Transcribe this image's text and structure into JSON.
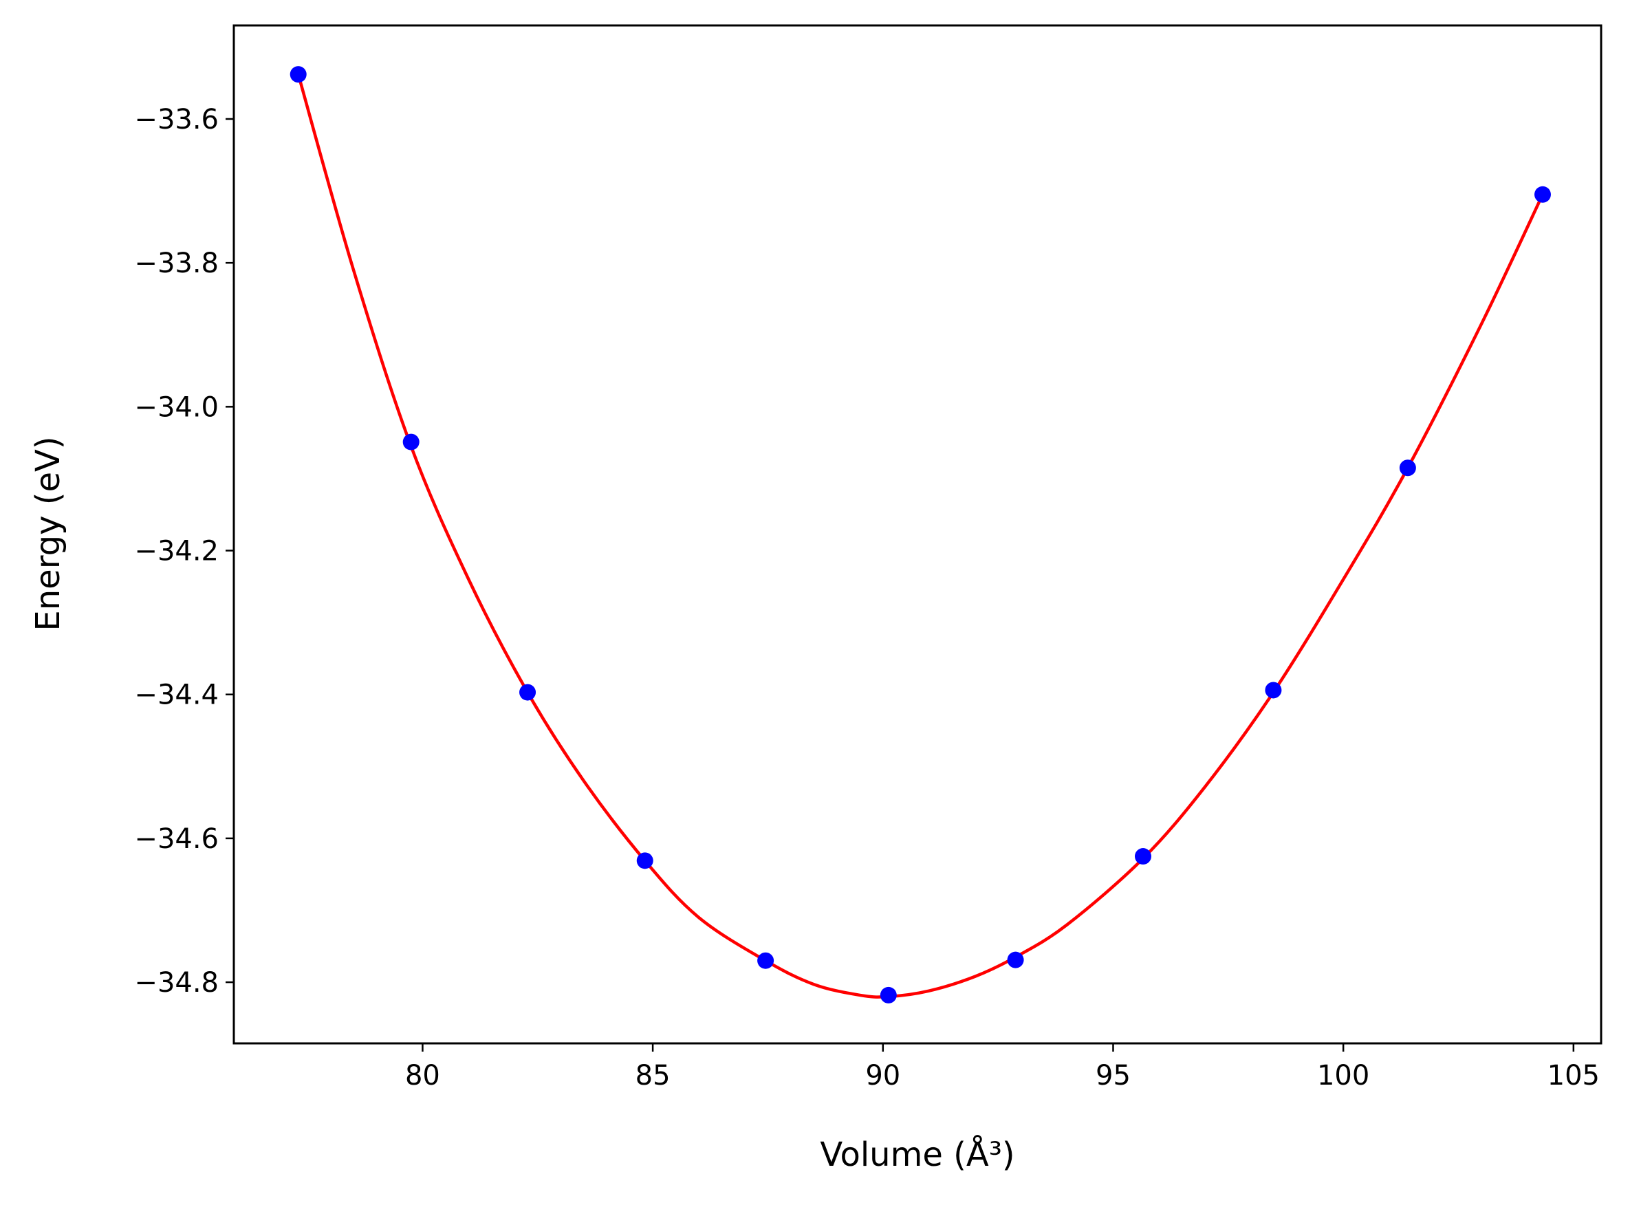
{
  "chart_data": {
    "type": "scatter",
    "xlabel": "Volume (Å³)",
    "ylabel": "Energy (eV)",
    "xlim": [
      75.9,
      105.6
    ],
    "ylim": [
      -34.885,
      -33.47
    ],
    "xticks": [
      80,
      85,
      90,
      95,
      100,
      105
    ],
    "yticks": [
      -34.8,
      -34.6,
      -34.4,
      -34.2,
      -34.0,
      -33.8,
      -33.6
    ],
    "xtick_labels": [
      "80",
      "85",
      "90",
      "95",
      "100",
      "105"
    ],
    "ytick_labels": [
      "−34.8",
      "−34.6",
      "−34.4",
      "−34.2",
      "−34.0",
      "−33.8",
      "−33.6"
    ],
    "grid": false,
    "series": [
      {
        "kind": "points",
        "color": "#0000ff",
        "x": [
          77.3,
          79.75,
          82.28,
          84.83,
          87.45,
          90.12,
          92.88,
          95.65,
          98.48,
          101.4,
          104.33
        ],
        "y": [
          -33.538,
          -34.049,
          -34.397,
          -34.631,
          -34.77,
          -34.818,
          -34.769,
          -34.625,
          -34.394,
          -34.085,
          -33.705
        ]
      },
      {
        "kind": "fit-curve",
        "color": "#ff0000",
        "x": [
          77.3,
          78.5,
          79.75,
          81.0,
          82.28,
          83.5,
          84.83,
          86.0,
          87.45,
          88.5,
          89.5,
          90.12,
          91.0,
          92.0,
          92.88,
          94.0,
          95.65,
          97.0,
          98.48,
          100.0,
          101.4,
          103.0,
          104.33
        ],
        "y": [
          -33.538,
          -33.81,
          -34.055,
          -34.24,
          -34.397,
          -34.52,
          -34.631,
          -34.71,
          -34.77,
          -34.803,
          -34.818,
          -34.82,
          -34.812,
          -34.792,
          -34.765,
          -34.72,
          -34.628,
          -34.528,
          -34.397,
          -34.24,
          -34.085,
          -33.885,
          -33.705
        ]
      }
    ]
  }
}
